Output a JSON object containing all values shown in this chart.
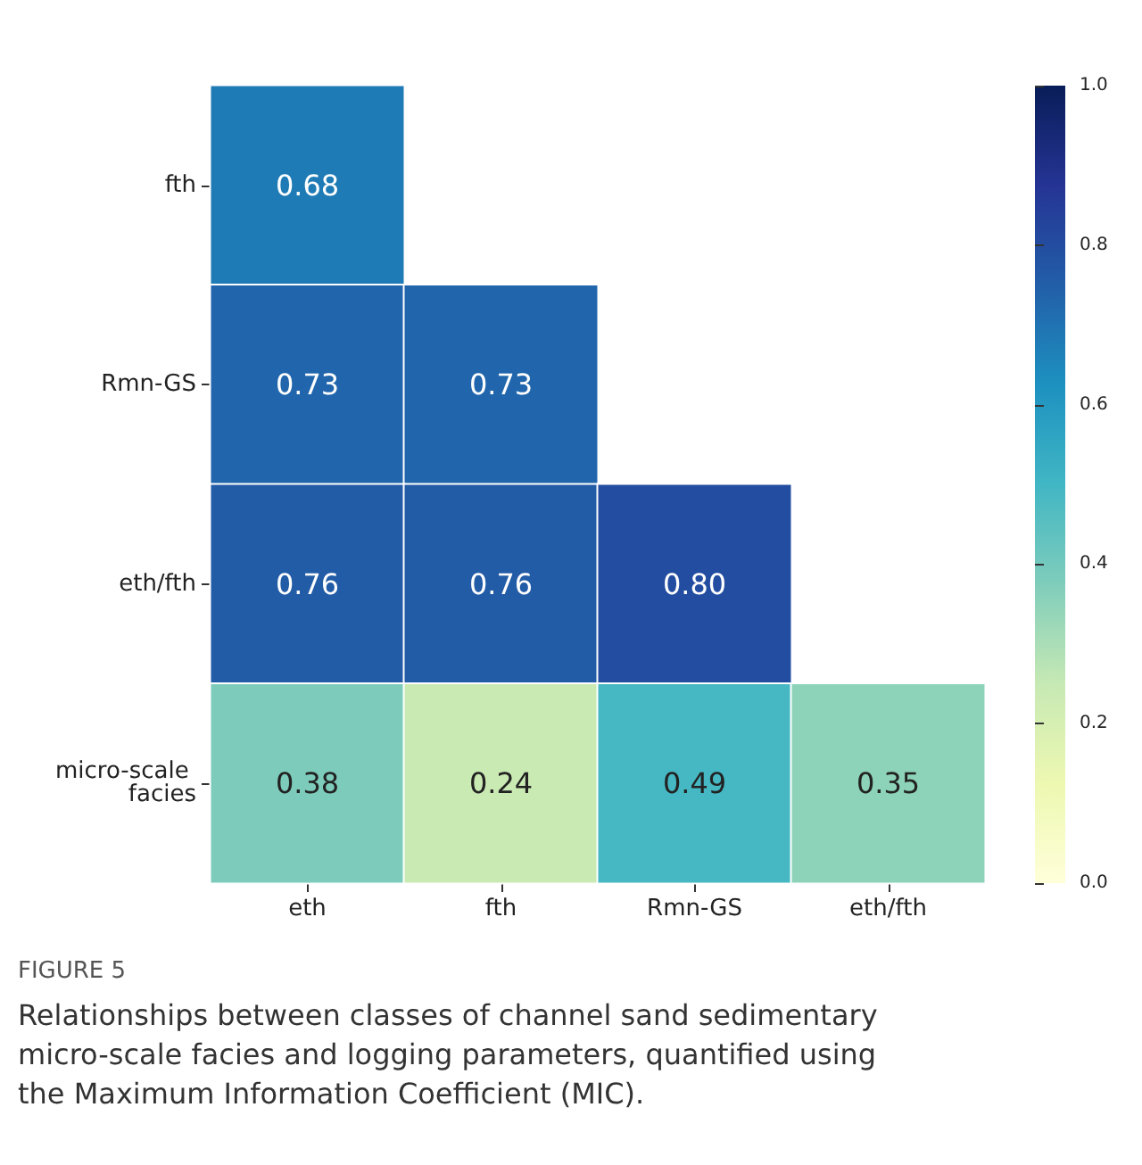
{
  "chart_data": {
    "type": "heatmap",
    "categories": [
      "eth",
      "fth",
      "Rmn-GS",
      "eth/fth"
    ],
    "y_categories": [
      "fth",
      "Rmn-GS",
      "eth/fth",
      "micro-scale facies"
    ],
    "cells": [
      [
        0.68,
        null,
        null,
        null
      ],
      [
        0.73,
        0.73,
        null,
        null
      ],
      [
        0.76,
        0.76,
        0.8,
        null
      ],
      [
        0.38,
        0.24,
        0.49,
        0.35
      ]
    ],
    "clim": [
      0,
      1
    ],
    "cell_labels": [
      [
        "0.68",
        null,
        null,
        null
      ],
      [
        "0.73",
        "0.73",
        null,
        null
      ],
      [
        "0.76",
        "0.76",
        "0.80",
        null
      ],
      [
        "0.38",
        "0.24",
        "0.49",
        "0.35"
      ]
    ],
    "cticks": [
      {
        "value": 0,
        "label": "0.0"
      },
      {
        "value": 0.2,
        "label": "0.2"
      },
      {
        "value": 0.4,
        "label": "0.4"
      },
      {
        "value": 0.6,
        "label": "0.6"
      },
      {
        "value": 0.8,
        "label": "0.8"
      },
      {
        "value": 1,
        "label": "1.0"
      }
    ],
    "annotations": [
      "FIGURE 5",
      "Relationships between classes of channel sand sedimentary micro-scale facies and logging parameters, quantified using the Maximum Information Coefficient (MIC)."
    ]
  }
}
